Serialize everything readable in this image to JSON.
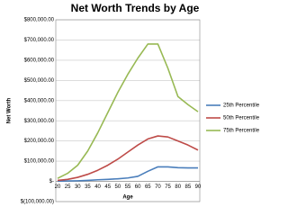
{
  "chart_data": {
    "type": "line",
    "title": "Net Worth Trends by Age",
    "x_label": "Age",
    "y_label": "Net Worth",
    "categories": [
      "20",
      "25",
      "30",
      "35",
      "40",
      "45",
      "50",
      "55",
      "60",
      "65",
      "70",
      "75",
      "80",
      "85",
      "90"
    ],
    "series": [
      {
        "name": "25th Percentile",
        "color": "#4a7ebb",
        "values": [
          1000,
          2000,
          3000,
          5000,
          8000,
          10000,
          13000,
          17000,
          25000,
          50000,
          72000,
          72000,
          68000,
          67000,
          67000
        ]
      },
      {
        "name": "50th Percentile",
        "color": "#be4b48",
        "values": [
          5000,
          10000,
          20000,
          35000,
          55000,
          80000,
          110000,
          145000,
          180000,
          210000,
          225000,
          220000,
          200000,
          180000,
          155000
        ]
      },
      {
        "name": "75th Percentile",
        "color": "#98b954",
        "values": [
          15000,
          40000,
          80000,
          150000,
          240000,
          340000,
          440000,
          530000,
          610000,
          680000,
          680000,
          560000,
          420000,
          380000,
          345000
        ]
      }
    ],
    "ylim": [
      -100000,
      800000
    ],
    "yticks": [
      {
        "value": -100000,
        "label": "$(100,000.00)"
      },
      {
        "value": 0,
        "label": "$-"
      },
      {
        "value": 100000,
        "label": "$100,000.00"
      },
      {
        "value": 200000,
        "label": "$200,000.00"
      },
      {
        "value": 300000,
        "label": "$300,000.00"
      },
      {
        "value": 400000,
        "label": "$400,000.00"
      },
      {
        "value": 500000,
        "label": "$500,000.00"
      },
      {
        "value": 600000,
        "label": "$600,000.00"
      },
      {
        "value": 700000,
        "label": "$700,000.00"
      },
      {
        "value": 800000,
        "label": "$800,000.00"
      }
    ],
    "grid": true,
    "legend": "right"
  }
}
